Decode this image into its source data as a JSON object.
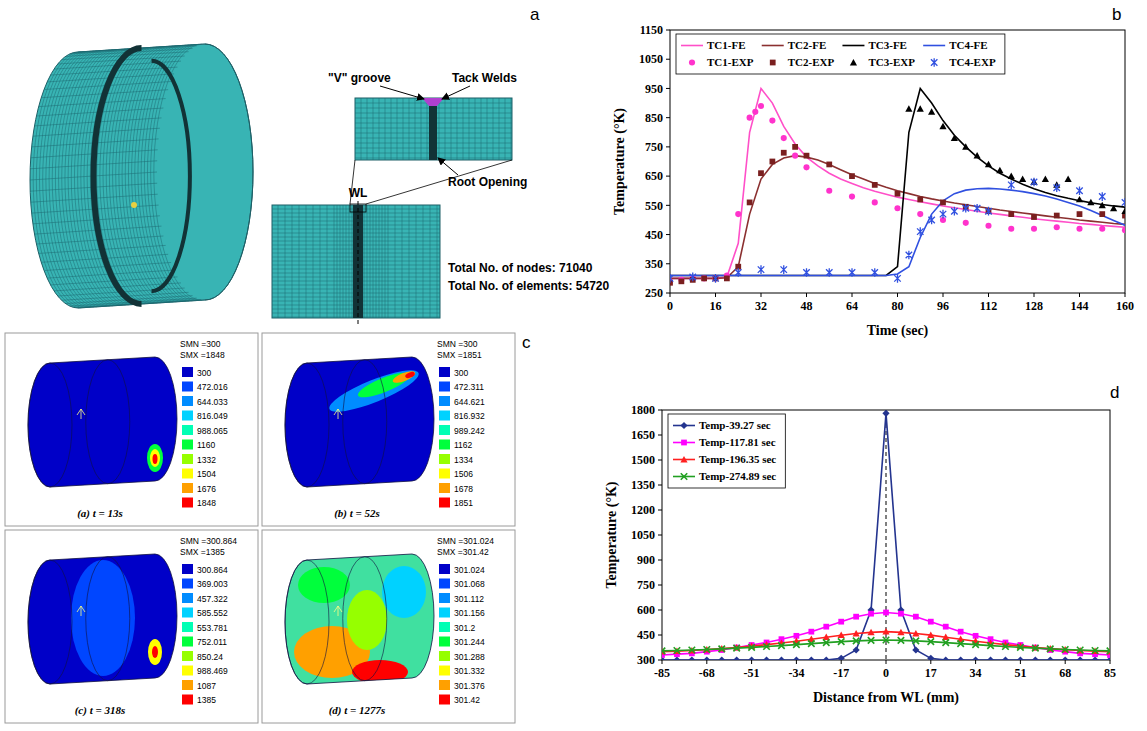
{
  "chart_data": [
    {
      "type": "line",
      "annotations": [
        "b"
      ],
      "x_label": "Time (sec)",
      "y_label": "Temperature (°K)",
      "x": [
        0,
        4,
        8,
        12,
        16,
        20,
        24,
        28,
        32,
        36,
        40,
        44,
        48,
        52,
        56,
        60,
        64,
        68,
        72,
        76,
        80,
        84,
        88,
        92,
        96,
        100,
        104,
        108,
        112,
        116,
        120,
        124,
        128,
        132,
        136,
        140,
        144,
        148,
        152,
        156,
        160
      ],
      "xlim": [
        0,
        160
      ],
      "xticks": [
        0,
        16,
        32,
        48,
        64,
        80,
        96,
        112,
        128,
        144,
        160
      ],
      "ylim": [
        250,
        1150
      ],
      "yticks": [
        250,
        350,
        450,
        550,
        650,
        750,
        850,
        950,
        1050,
        1150
      ],
      "grid": false,
      "legend": "upper left",
      "series": [
        {
          "name": "TC1-FE",
          "color": "#ff4fc8",
          "line_style": "solid",
          "values": [
            300,
            300,
            300,
            300,
            300,
            305,
            420,
            800,
            950,
            900,
            820,
            760,
            715,
            685,
            660,
            640,
            625,
            610,
            598,
            588,
            578,
            570,
            562,
            555,
            548,
            542,
            536,
            530,
            524,
            519,
            514,
            509,
            504,
            500,
            496,
            492,
            488,
            485,
            481,
            478,
            475
          ]
        },
        {
          "name": "TC2-FE",
          "color": "#8b3030",
          "line_style": "solid",
          "values": [
            300,
            300,
            300,
            300,
            300,
            302,
            340,
            520,
            640,
            690,
            712,
            720,
            715,
            705,
            690,
            672,
            655,
            640,
            625,
            612,
            600,
            590,
            580,
            572,
            565,
            558,
            552,
            546,
            540,
            534,
            529,
            524,
            519,
            514,
            509,
            505,
            500,
            496,
            492,
            488,
            485
          ]
        },
        {
          "name": "TC3-FE",
          "color": "#000000",
          "line_style": "solid",
          "values": [
            310,
            310,
            310,
            310,
            310,
            310,
            310,
            310,
            310,
            310,
            310,
            310,
            310,
            310,
            310,
            310,
            310,
            310,
            310,
            310,
            340,
            800,
            950,
            900,
            840,
            790,
            750,
            715,
            685,
            660,
            640,
            622,
            607,
            594,
            583,
            574,
            566,
            559,
            553,
            548,
            544
          ]
        },
        {
          "name": "TC4-FE",
          "color": "#3050e0",
          "line_style": "solid",
          "values": [
            310,
            310,
            310,
            310,
            310,
            310,
            310,
            310,
            310,
            310,
            310,
            310,
            310,
            310,
            310,
            310,
            310,
            310,
            310,
            310,
            315,
            340,
            440,
            520,
            565,
            590,
            602,
            607,
            608,
            606,
            602,
            597,
            590,
            582,
            572,
            560,
            548,
            532,
            515,
            498,
            482
          ]
        },
        {
          "name": "TC1-EXP",
          "color": "#ff33cc",
          "type": "scatter",
          "marker": "circle",
          "x": [
            0,
            4,
            8,
            12,
            16,
            20,
            24,
            28,
            30,
            32,
            36,
            40,
            44,
            48,
            56,
            64,
            72,
            80,
            88,
            96,
            104,
            112,
            120,
            128,
            136,
            144,
            152,
            160
          ],
          "values": [
            290,
            295,
            300,
            300,
            300,
            310,
            520,
            850,
            870,
            890,
            840,
            780,
            720,
            680,
            600,
            580,
            560,
            540,
            520,
            500,
            490,
            480,
            470,
            470,
            475,
            470,
            470,
            465
          ]
        },
        {
          "name": "TC2-EXP",
          "color": "#7a1f1f",
          "type": "scatter",
          "marker": "square",
          "x": [
            0,
            4,
            8,
            12,
            16,
            20,
            24,
            28,
            32,
            36,
            40,
            44,
            48,
            56,
            64,
            72,
            80,
            88,
            96,
            104,
            112,
            120,
            128,
            136,
            144,
            152,
            160
          ],
          "values": [
            285,
            290,
            295,
            300,
            300,
            300,
            340,
            560,
            660,
            700,
            730,
            750,
            720,
            690,
            650,
            620,
            590,
            570,
            560,
            545,
            530,
            520,
            510,
            515,
            520,
            520,
            515
          ]
        },
        {
          "name": "TC3-EXP",
          "color": "#000000",
          "type": "scatter",
          "marker": "triangle",
          "x": [
            84,
            88,
            92,
            96,
            100,
            104,
            108,
            112,
            116,
            120,
            124,
            128,
            132,
            136,
            140,
            144,
            148,
            152,
            156,
            160
          ],
          "values": [
            880,
            880,
            870,
            820,
            780,
            750,
            720,
            690,
            670,
            650,
            640,
            630,
            640,
            620,
            640,
            570,
            560,
            550,
            540,
            530
          ]
        },
        {
          "name": "TC4-EXP",
          "color": "#3050e0",
          "type": "scatter",
          "marker": "star",
          "x": [
            0,
            8,
            16,
            24,
            32,
            40,
            48,
            56,
            64,
            72,
            80,
            84,
            88,
            92,
            96,
            100,
            104,
            108,
            112,
            120,
            128,
            136,
            144,
            152,
            160
          ],
          "values": [
            300,
            305,
            300,
            320,
            330,
            330,
            320,
            320,
            320,
            320,
            300,
            380,
            460,
            500,
            520,
            530,
            540,
            540,
            530,
            620,
            630,
            610,
            600,
            580,
            560
          ]
        }
      ]
    },
    {
      "type": "line",
      "annotations": [
        "d"
      ],
      "x_label": "Distance from WL (mm)",
      "y_label": "Temperature (°K)",
      "x": [
        -85,
        -79.33,
        -73.67,
        -68,
        -62.33,
        -56.67,
        -51,
        -45.33,
        -39.67,
        -34,
        -28.33,
        -22.67,
        -17,
        -11.33,
        -5.67,
        0,
        5.67,
        11.33,
        17,
        22.67,
        28.33,
        34,
        39.67,
        45.33,
        51,
        56.67,
        62.33,
        68,
        73.67,
        79.33,
        85
      ],
      "xlim": [
        -85,
        85
      ],
      "xticks": [
        -85,
        -68,
        -51,
        -34,
        -17,
        0,
        17,
        34,
        51,
        68,
        85
      ],
      "ylim": [
        300,
        1800
      ],
      "yticks": [
        300,
        450,
        600,
        750,
        900,
        1050,
        1200,
        1350,
        1500,
        1650,
        1800
      ],
      "grid": false,
      "legend": "upper left",
      "series": [
        {
          "name": "Temp-39.27 sec",
          "color": "#24348f",
          "marker": "diamond",
          "line_style": "solid",
          "values": [
            300,
            300,
            300,
            300,
            300,
            300,
            300,
            300,
            300,
            300,
            300,
            300,
            310,
            360,
            600,
            1780,
            600,
            360,
            310,
            300,
            300,
            300,
            300,
            300,
            300,
            300,
            300,
            300,
            300,
            300,
            300
          ]
        },
        {
          "name": "Temp-117.81 sec",
          "color": "#ff00ff",
          "marker": "square",
          "line_style": "solid",
          "values": [
            330,
            335,
            340,
            350,
            360,
            375,
            390,
            405,
            425,
            445,
            470,
            500,
            530,
            560,
            578,
            585,
            578,
            560,
            530,
            500,
            470,
            445,
            425,
            405,
            390,
            375,
            360,
            350,
            340,
            335,
            330
          ]
        },
        {
          "name": "Temp-196.35 sec",
          "color": "#ff2020",
          "marker": "triangle",
          "line_style": "solid",
          "values": [
            350,
            353,
            357,
            362,
            368,
            375,
            383,
            392,
            402,
            413,
            425,
            437,
            449,
            459,
            466,
            470,
            466,
            459,
            449,
            437,
            425,
            413,
            402,
            392,
            383,
            375,
            368,
            362,
            357,
            353,
            350
          ]
        },
        {
          "name": "Temp-274.89 sec",
          "color": "#22a022",
          "marker": "x",
          "line_style": "solid",
          "values": [
            355,
            357,
            360,
            363,
            367,
            371,
            376,
            381,
            386,
            392,
            398,
            404,
            410,
            415,
            418,
            420,
            418,
            415,
            410,
            404,
            398,
            392,
            386,
            381,
            376,
            371,
            367,
            363,
            360,
            357,
            355
          ]
        }
      ]
    }
  ],
  "panel_a": {
    "letter": "a",
    "weld_line": "WL",
    "groove": "\"V\" groove",
    "tack": "Tack Welds",
    "root": "Root Opening",
    "nodes": "Total No. of nodes: 71040",
    "elements": "Total No. of elements: 54720"
  },
  "panel_c": {
    "letter": "c",
    "frames": [
      {
        "caption": "(a) t = 13s",
        "smn": "SMN =300",
        "smx": "SMX =1848",
        "levels": [
          "300",
          "472.016",
          "644.033",
          "816.049",
          "988.065",
          "1160",
          "1332",
          "1504",
          "1676",
          "1848"
        ]
      },
      {
        "caption": "(b) t = 52s",
        "smn": "SMN =300",
        "smx": "SMX =1851",
        "levels": [
          "300",
          "472.311",
          "644.621",
          "816.932",
          "989.242",
          "1162",
          "1334",
          "1506",
          "1678",
          "1851"
        ]
      },
      {
        "caption": "(c) t = 318s",
        "smn": "SMN =300.864",
        "smx": "SMX =1385",
        "levels": [
          "300.864",
          "369.003",
          "457.322",
          "585.552",
          "553.781",
          "752.011",
          "850.24",
          "988.469",
          "1087",
          "1385"
        ]
      },
      {
        "caption": "(d) t = 1277s",
        "smn": "SMN =301.024",
        "smx": "SMX =301.42",
        "levels": [
          "301.024",
          "301.068",
          "301.112",
          "301.156",
          "301.2",
          "301.244",
          "301.288",
          "301.332",
          "301.376",
          "301.42"
        ]
      }
    ]
  }
}
